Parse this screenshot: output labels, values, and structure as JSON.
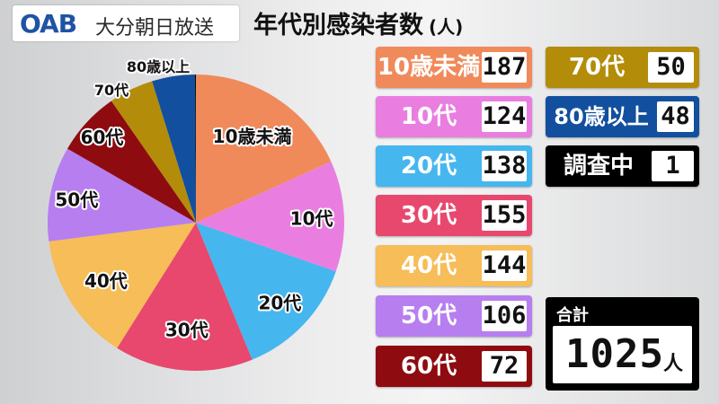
{
  "header": {
    "logo_mark": "OAB",
    "logo_text": "大分朝日放送",
    "title": "年代別感染者数",
    "unit": "(人)"
  },
  "chart_data": {
    "type": "pie",
    "title": "年代別感染者数",
    "unit": "人",
    "categories": [
      "10歳未満",
      "10代",
      "20代",
      "30代",
      "40代",
      "50代",
      "60代",
      "70代",
      "80歳以上",
      "調査中"
    ],
    "values": [
      187,
      124,
      138,
      155,
      144,
      106,
      72,
      50,
      48,
      1
    ],
    "colors": [
      "#f08a5a",
      "#e97ee0",
      "#46b6ef",
      "#e8486e",
      "#f6bd58",
      "#b77ef0",
      "#8e0b10",
      "#b38c09",
      "#124f9e",
      "#000000"
    ],
    "pie_labels": [
      "10歳未満",
      "10代",
      "20代",
      "30代",
      "40代",
      "50代",
      "60代",
      "70代",
      "80歳以上"
    ],
    "total": 1025
  },
  "legend": [
    {
      "label": "10歳未満",
      "value": "187",
      "color": "#f08a5a",
      "text_color": "#ffffff"
    },
    {
      "label": "10代",
      "value": "124",
      "color": "#e97ee0",
      "text_color": "#ffffff"
    },
    {
      "label": "20代",
      "value": "138",
      "color": "#46b6ef",
      "text_color": "#ffffff"
    },
    {
      "label": "30代",
      "value": "155",
      "color": "#e8486e",
      "text_color": "#ffffff"
    },
    {
      "label": "40代",
      "value": "144",
      "color": "#f6bd58",
      "text_color": "#ffffff"
    },
    {
      "label": "50代",
      "value": "106",
      "color": "#b77ef0",
      "text_color": "#ffffff"
    },
    {
      "label": "60代",
      "value": "72",
      "color": "#8e0b10",
      "text_color": "#ffffff"
    },
    {
      "label": "70代",
      "value": "50",
      "color": "#b38c09",
      "text_color": "#ffffff"
    },
    {
      "label": "80歳以上",
      "value": "48",
      "color": "#124f9e",
      "text_color": "#ffffff"
    },
    {
      "label": "調査中",
      "value": "1",
      "color": "#000000",
      "text_color": "#ffffff"
    }
  ],
  "total": {
    "label": "合計",
    "value": "1025",
    "unit": "人"
  }
}
